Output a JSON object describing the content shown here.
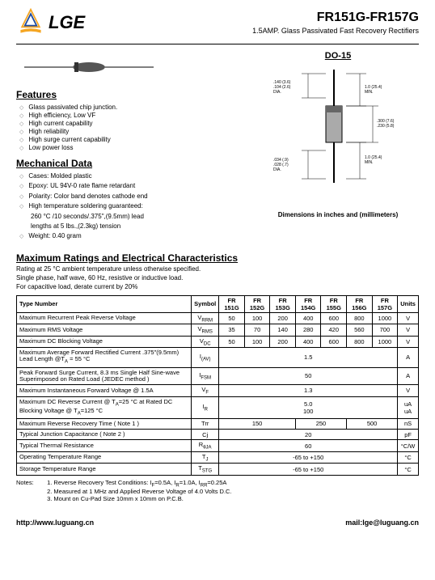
{
  "logo_text": "LGE",
  "title": "FR151G-FR157G",
  "subtitle": "1.5AMP. Glass Passivated Fast Recovery Rectifiers",
  "do15": "DO-15",
  "features_title": "Features",
  "features": [
    "Glass passivated chip junction.",
    "High efficiency, Low VF",
    "High current capability",
    "High reliability",
    "High surge current capability",
    "Low power loss"
  ],
  "mech_title": "Mechanical Data",
  "mechanical": [
    "Cases: Molded plastic",
    "Epoxy: UL 94V-0 rate flame retardant",
    "Polarity: Color band denotes cathode end",
    "High temperature soldering guaranteed:",
    "260 °C /10 seconds/.375\",(9.5mm) lead",
    "lengths at 5 lbs.,(2.3kg) tension",
    "Weight: 0.40 gram"
  ],
  "dim_caption": "Dimensions in inches and (millimeters)",
  "ratings_title": "Maximum Ratings and Electrical Characteristics",
  "ratings_sub1": "Rating at 25 °C ambient temperature unless otherwise specified.",
  "ratings_sub2": "Single phase, half wave, 60 Hz, resistive or inductive load.",
  "ratings_sub3": "For capacitive load, derate current by 20%",
  "table": {
    "type_number": "Type Number",
    "symbol_h": "Symbol",
    "parts": [
      "FR 151G",
      "FR 152G",
      "FR 153G",
      "FR 154G",
      "FR 155G",
      "FR 156G",
      "FR 157G"
    ],
    "units_h": "Units",
    "rows": [
      {
        "param": "Maximum Recurrent Peak Reverse Voltage",
        "sym": "V<sub>RRM</sub>",
        "vals": [
          "50",
          "100",
          "200",
          "400",
          "600",
          "800",
          "1000"
        ],
        "unit": "V"
      },
      {
        "param": "Maximum RMS Voltage",
        "sym": "V<sub>RMS</sub>",
        "vals": [
          "35",
          "70",
          "140",
          "280",
          "420",
          "560",
          "700"
        ],
        "unit": "V"
      },
      {
        "param": "Maximum DC Blocking Voltage",
        "sym": "V<sub>DC</sub>",
        "vals": [
          "50",
          "100",
          "200",
          "400",
          "600",
          "800",
          "1000"
        ],
        "unit": "V"
      },
      {
        "param": "Maximum Average Forward Rectified Current .375\"(9.5mm) Lead Length @T<sub>A</sub> = 55 °C",
        "sym": "I<sub>(AV)</sub>",
        "span": "1.5",
        "unit": "A"
      },
      {
        "param": "Peak Forward Surge Current, 8.3 ms Single Half Sine-wave Superimposed on Rated Load (JEDEC method )",
        "sym": "I<sub>FSM</sub>",
        "span": "50",
        "unit": "A"
      },
      {
        "param": "Maximum Instantaneous Forward Voltage @ 1.5A",
        "sym": "V<sub>F</sub>",
        "span": "1.3",
        "unit": "V"
      },
      {
        "param": "Maximum DC Reverse Current @ T<sub>A</sub>=25 °C at Rated DC Blocking Voltage @ T<sub>A</sub>=125 °C",
        "sym": "I<sub>R</sub>",
        "span": "5.0<br>100",
        "unit": "uA<br>uA"
      },
      {
        "param": "Maximum Reverse Recovery Time ( Note 1 )",
        "sym": "Trr",
        "trr": [
          "150",
          "250",
          "500"
        ],
        "unit": "nS"
      },
      {
        "param": "Typical Junction Capacitance ( Note 2 )",
        "sym": "Cj",
        "span": "20",
        "unit": "pF"
      },
      {
        "param": "Typical Thermal Resistance",
        "sym": "R<sub>θJA</sub>",
        "span": "60",
        "unit": "°C/W"
      },
      {
        "param": "Operating Temperature Range",
        "sym": "T<sub>J</sub>",
        "span": "-65 to +150",
        "unit": "°C"
      },
      {
        "param": "Storage Temperature Range",
        "sym": "T<sub>STG</sub>",
        "span": "-65 to +150",
        "unit": "°C"
      }
    ]
  },
  "notes_label": "Notes:",
  "notes": [
    "1. Reverse Recovery Test Conditions: I<sub>F</sub>=0.5A, I<sub>R</sub>=1.0A, I<sub>RR</sub>=0.25A",
    "2. Measured at 1 MHz and Applied Reverse Voltage of 4.0 Volts D.C.",
    "3. Mount on Cu-Pad Size 10mm x 10mm on P.C.B."
  ],
  "footer_url": "http://www.luguang.cn",
  "footer_mail": "mail:lge@luguang.cn",
  "pkg_labels": {
    "d1": ".140 (3.6)",
    "d1b": ".104 (2.6)",
    "d1c": "DIA.",
    "l1": "1.0 (25.4)",
    "l1b": "MIN.",
    "b1": ".300 (7.6)",
    "b1b": ".230 (5.8)",
    "d2": ".034 (.9)",
    "d2b": ".028 (.7)",
    "d2c": "DIA."
  }
}
